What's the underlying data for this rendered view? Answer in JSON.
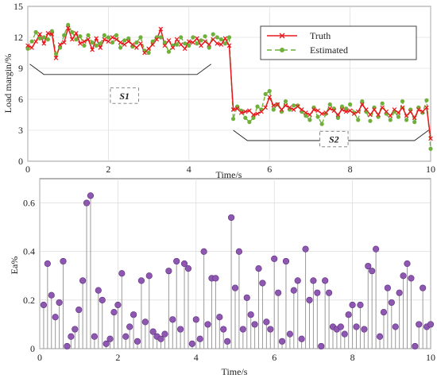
{
  "chart_data": [
    {
      "type": "line",
      "xlabel": "Time/s",
      "ylabel": "Load margin/%",
      "xlim": [
        0,
        10
      ],
      "ylim": [
        0,
        15
      ],
      "xticks": [
        "0",
        "2",
        "4",
        "6",
        "8",
        "10"
      ],
      "yticks": [
        "0",
        "3",
        "6",
        "9",
        "12",
        "15"
      ],
      "grid": true,
      "legend_position": "top-right",
      "annotations": [
        "S1",
        "S2"
      ],
      "series": [
        {
          "name": "Truth",
          "color": "#e8191e",
          "marker": "x",
          "x": [
            0,
            0.1,
            0.2,
            0.3,
            0.4,
            0.5,
            0.6,
            0.7,
            0.8,
            0.9,
            1.0,
            1.1,
            1.2,
            1.3,
            1.4,
            1.5,
            1.6,
            1.7,
            1.8,
            1.9,
            2.0,
            2.1,
            2.2,
            2.3,
            2.4,
            2.5,
            2.6,
            2.7,
            2.8,
            2.9,
            3.0,
            3.1,
            3.2,
            3.3,
            3.4,
            3.5,
            3.6,
            3.7,
            3.8,
            3.9,
            4.0,
            4.1,
            4.2,
            4.3,
            4.4,
            4.5,
            4.6,
            4.7,
            4.8,
            4.9,
            5.0,
            5.1,
            5.2,
            5.3,
            5.4,
            5.5,
            5.6,
            5.7,
            5.8,
            5.9,
            6.0,
            6.1,
            6.2,
            6.3,
            6.4,
            6.5,
            6.6,
            6.7,
            6.8,
            6.9,
            7.0,
            7.1,
            7.2,
            7.3,
            7.4,
            7.5,
            7.6,
            7.7,
            7.8,
            7.9,
            8.0,
            8.1,
            8.2,
            8.3,
            8.4,
            8.5,
            8.6,
            8.7,
            8.8,
            8.9,
            9.0,
            9.1,
            9.2,
            9.3,
            9.4,
            9.5,
            9.6,
            9.7,
            9.8,
            9.9,
            10.0
          ],
          "y": [
            11.2,
            11.0,
            11.6,
            12.3,
            11.4,
            12.4,
            12.3,
            10.0,
            11.3,
            11.5,
            12.9,
            11.8,
            12.4,
            11.4,
            11.6,
            11.8,
            10.8,
            11.9,
            11.0,
            11.8,
            11.6,
            12.0,
            11.8,
            11.5,
            11.3,
            11.6,
            11.3,
            11.0,
            11.4,
            10.5,
            10.9,
            11.3,
            11.8,
            12.8,
            11.2,
            11.7,
            11.0,
            11.8,
            11.3,
            10.9,
            11.6,
            11.5,
            11.9,
            11.2,
            11.6,
            11.3,
            11.8,
            11.4,
            11.3,
            11.9,
            11.2,
            5.0,
            5.1,
            4.7,
            4.8,
            4.9,
            4.5,
            4.6,
            4.8,
            5.2,
            6.2,
            5.4,
            5.5,
            5.0,
            5.4,
            5.2,
            5.0,
            5.3,
            5.0,
            4.7,
            4.5,
            5.0,
            4.9,
            4.6,
            4.7,
            5.1,
            4.9,
            4.5,
            5.0,
            4.8,
            4.9,
            4.6,
            4.8,
            5.5,
            5.0,
            4.5,
            5.0,
            4.5,
            5.2,
            4.8,
            4.4,
            5.0,
            4.7,
            5.2,
            4.4,
            4.8,
            4.2,
            5.0,
            4.8,
            5.2,
            2.2
          ]
        },
        {
          "name": "Estimated",
          "color": "#6fb03a",
          "marker": "o",
          "x": [
            0,
            0.1,
            0.2,
            0.3,
            0.4,
            0.5,
            0.6,
            0.7,
            0.8,
            0.9,
            1.0,
            1.1,
            1.2,
            1.3,
            1.4,
            1.5,
            1.6,
            1.7,
            1.8,
            1.9,
            2.0,
            2.1,
            2.2,
            2.3,
            2.4,
            2.5,
            2.6,
            2.7,
            2.8,
            2.9,
            3.0,
            3.1,
            3.2,
            3.3,
            3.4,
            3.5,
            3.6,
            3.7,
            3.8,
            3.9,
            4.0,
            4.1,
            4.2,
            4.3,
            4.4,
            4.5,
            4.6,
            4.7,
            4.8,
            4.9,
            5.0,
            5.1,
            5.2,
            5.3,
            5.4,
            5.5,
            5.6,
            5.7,
            5.8,
            5.9,
            6.0,
            6.1,
            6.2,
            6.3,
            6.4,
            6.5,
            6.6,
            6.7,
            6.8,
            6.9,
            7.0,
            7.1,
            7.2,
            7.3,
            7.4,
            7.5,
            7.6,
            7.7,
            7.8,
            7.9,
            8.0,
            8.1,
            8.2,
            8.3,
            8.4,
            8.5,
            8.6,
            8.7,
            8.8,
            8.9,
            9.0,
            9.1,
            9.2,
            9.3,
            9.4,
            9.5,
            9.6,
            9.7,
            9.8,
            9.9,
            10.0
          ],
          "y": [
            10.9,
            11.6,
            12.5,
            11.9,
            12.0,
            11.8,
            12.6,
            10.4,
            11.0,
            12.2,
            13.2,
            12.5,
            11.8,
            12.1,
            11.2,
            12.2,
            11.5,
            11.2,
            11.4,
            12.2,
            12.0,
            11.5,
            12.2,
            11.0,
            11.7,
            11.9,
            11.1,
            11.5,
            12.0,
            10.7,
            10.5,
            11.6,
            12.0,
            12.0,
            11.5,
            10.6,
            11.2,
            11.3,
            12.0,
            11.4,
            11.2,
            12.0,
            11.4,
            11.7,
            12.1,
            11.0,
            12.3,
            12.0,
            11.8,
            11.4,
            12.0,
            4.1,
            5.3,
            4.9,
            4.2,
            3.8,
            4.2,
            5.3,
            5.0,
            6.5,
            6.8,
            5.0,
            5.5,
            4.8,
            5.8,
            5.0,
            5.4,
            5.4,
            4.8,
            4.4,
            4.0,
            5.2,
            4.3,
            3.6,
            4.6,
            5.5,
            5.1,
            4.2,
            5.3,
            5.1,
            5.5,
            4.7,
            4.0,
            5.8,
            4.8,
            3.9,
            5.2,
            4.3,
            5.6,
            4.6,
            4.0,
            4.8,
            4.3,
            5.8,
            4.0,
            5.0,
            3.8,
            5.2,
            4.7,
            5.9,
            1.2
          ]
        }
      ]
    },
    {
      "type": "stem",
      "xlabel": "Time/s",
      "ylabel": "Ea%",
      "xlim": [
        0,
        10
      ],
      "ylim": [
        0,
        0.7
      ],
      "xticks": [
        "0",
        "2",
        "4",
        "6",
        "8",
        "10"
      ],
      "yticks": [
        "0",
        "0.2",
        "0.4",
        "0.6"
      ],
      "grid": true,
      "series": [
        {
          "name": "",
          "color": "#8e57b0",
          "x": [
            0.1,
            0.2,
            0.3,
            0.4,
            0.5,
            0.6,
            0.7,
            0.8,
            0.9,
            1.0,
            1.1,
            1.2,
            1.3,
            1.4,
            1.5,
            1.6,
            1.7,
            1.8,
            1.9,
            2.0,
            2.1,
            2.2,
            2.3,
            2.4,
            2.5,
            2.6,
            2.7,
            2.8,
            2.9,
            3.0,
            3.1,
            3.2,
            3.3,
            3.4,
            3.5,
            3.6,
            3.7,
            3.8,
            3.9,
            4.0,
            4.1,
            4.2,
            4.3,
            4.4,
            4.5,
            4.6,
            4.7,
            4.8,
            4.9,
            5.0,
            5.1,
            5.2,
            5.3,
            5.4,
            5.5,
            5.6,
            5.7,
            5.8,
            5.9,
            6.0,
            6.1,
            6.2,
            6.3,
            6.4,
            6.5,
            6.6,
            6.7,
            6.8,
            6.9,
            7.0,
            7.1,
            7.2,
            7.3,
            7.4,
            7.5,
            7.6,
            7.7,
            7.8,
            7.9,
            8.0,
            8.1,
            8.2,
            8.3,
            8.4,
            8.5,
            8.6,
            8.7,
            8.8,
            8.9,
            9.0,
            9.1,
            9.2,
            9.3,
            9.4,
            9.5,
            9.6,
            9.7,
            9.8,
            9.9,
            10.0
          ],
          "values": [
            0.18,
            0.35,
            0.22,
            0.13,
            0.19,
            0.36,
            0.01,
            0.05,
            0.08,
            0.16,
            0.28,
            0.6,
            0.63,
            0.05,
            0.24,
            0.2,
            0.02,
            0.04,
            0.15,
            0.18,
            0.31,
            0.05,
            0.09,
            0.14,
            0.03,
            0.28,
            0.11,
            0.3,
            0.07,
            0.05,
            0.04,
            0.06,
            0.32,
            0.12,
            0.36,
            0.08,
            0.35,
            0.33,
            0.02,
            0.12,
            0.04,
            0.4,
            0.1,
            0.29,
            0.29,
            0.13,
            0.08,
            0.03,
            0.54,
            0.25,
            0.4,
            0.08,
            0.21,
            0.14,
            0.1,
            0.33,
            0.27,
            0.11,
            0.08,
            0.37,
            0.23,
            0.03,
            0.36,
            0.06,
            0.24,
            0.28,
            0.04,
            0.41,
            0.2,
            0.28,
            0.23,
            0.01,
            0.28,
            0.23,
            0.09,
            0.08,
            0.09,
            0.06,
            0.14,
            0.18,
            0.09,
            0.18,
            0.08,
            0.34,
            0.32,
            0.41,
            0.05,
            0.15,
            0.25,
            0.19,
            0.09,
            0.23,
            0.3,
            0.35,
            0.29,
            0.01,
            0.1,
            0.25,
            0.09,
            0.1
          ]
        }
      ]
    }
  ]
}
